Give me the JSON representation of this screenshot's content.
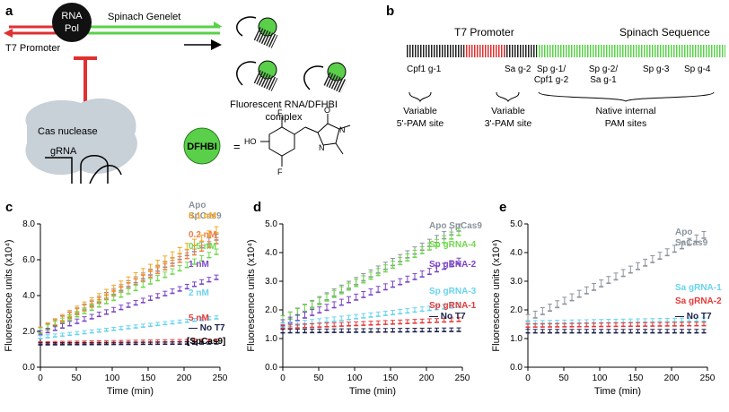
{
  "panel_labels": {
    "a": "a",
    "b": "b",
    "c": "c",
    "d": "d",
    "e": "e"
  },
  "schematic_a": {
    "rna_pol": [
      "RNA",
      "Pol"
    ],
    "genelet": "Spinach Genelet",
    "t7_promoter": "T7 Promoter",
    "cas_nuclease": "Cas nuclease",
    "grna": "gRNA",
    "complex": [
      "Fluorescent RNA/DFHBI",
      "complex"
    ],
    "dfhbi": "DFHBI",
    "equals": "=",
    "chem_atoms": {
      "F1": "F",
      "HO": "HO",
      "F2": "F",
      "O": "O",
      "N1": "N",
      "N2": "N"
    }
  },
  "schematic_b": {
    "t7_promoter": "T7 Promoter",
    "spinach_sequence": "Spinach Sequence",
    "sites": [
      "Cpf1 g-1",
      "Sa g-2",
      "Sp g-1/\nCpf1 g-2",
      "Sp g-2/\nSa g-1",
      "Sp g-3",
      "Sp g-4"
    ],
    "brace_labels": [
      [
        "Variable",
        "5'-PAM site"
      ],
      [
        "Variable",
        "3'-PAM site"
      ],
      [
        "Native internal",
        "PAM sites"
      ]
    ]
  },
  "colors": {
    "gray": "#8a939c",
    "orange": "#f5a623",
    "lightorange": "#f07f43",
    "green": "#6ed94a",
    "purple": "#7a45c7",
    "cyan": "#68d4ee",
    "red": "#e63a3a",
    "navy": "#1a1f4a",
    "promoter_red": "#e03030",
    "genelet_green": "#5ad04a",
    "blob": "#c8d0d8"
  },
  "chart_data": [
    {
      "id": "c",
      "type": "line",
      "xlabel": "Time (min)",
      "ylabel": "Fluorescence units (x10⁴)",
      "xlim": [
        0,
        250
      ],
      "ylim": [
        0,
        8
      ],
      "xticks": [
        "0",
        "50",
        "100",
        "150",
        "200",
        "250"
      ],
      "yticks": [
        "0.0",
        "2.0",
        "4.0",
        "6.0",
        "8.0"
      ],
      "x_start": 0,
      "x_end": 245,
      "legend_footer": "[SpCas9]",
      "series": [
        {
          "name": "Apo SpCas9",
          "y0": 1.9,
          "y1": 7.1,
          "color": "gray"
        },
        {
          "name": "0.1 nM",
          "y0": 1.9,
          "y1": 7.5,
          "color": "orange"
        },
        {
          "name": "0.2 nM",
          "y0": 1.9,
          "y1": 6.9,
          "color": "lightorange"
        },
        {
          "name": "0.5 nM",
          "y0": 1.9,
          "y1": 6.3,
          "color": "green"
        },
        {
          "name": "1 nM",
          "y0": 1.8,
          "y1": 4.9,
          "color": "purple"
        },
        {
          "name": "2 nM",
          "y0": 1.6,
          "y1": 2.7,
          "color": "cyan"
        },
        {
          "name": "5 nM",
          "y0": 1.3,
          "y1": 1.45,
          "color": "red"
        },
        {
          "name": "No T7",
          "y0": 1.25,
          "y1": 1.3,
          "color": "navy"
        }
      ]
    },
    {
      "id": "d",
      "type": "line",
      "xlabel": "Time (min)",
      "ylabel": "Fluorescence units (x10⁴)",
      "xlim": [
        0,
        250
      ],
      "ylim": [
        0,
        5
      ],
      "xticks": [
        "0",
        "50",
        "100",
        "150",
        "200",
        "250"
      ],
      "yticks": [
        "0.0",
        "1.0",
        "2.0",
        "3.0",
        "4.0",
        "5.0"
      ],
      "x_start": 0,
      "x_end": 245,
      "series": [
        {
          "name": "Apo SpCas9",
          "y0": 1.55,
          "y1": 4.75,
          "color": "gray"
        },
        {
          "name": "Sp gRNA-4",
          "y0": 1.55,
          "y1": 4.6,
          "color": "green"
        },
        {
          "name": "Sp gRNA-2",
          "y0": 1.45,
          "y1": 3.6,
          "color": "purple"
        },
        {
          "name": "Sp gRNA-3",
          "y0": 1.4,
          "y1": 2.1,
          "color": "cyan"
        },
        {
          "name": "Sp gRNA-1",
          "y0": 1.35,
          "y1": 1.6,
          "color": "red"
        },
        {
          "name": "No T7",
          "y0": 1.2,
          "y1": 1.25,
          "color": "navy"
        }
      ]
    },
    {
      "id": "e",
      "type": "line",
      "xlabel": "Time (min)",
      "ylabel": "Fluorescence units (x10⁴)",
      "xlim": [
        0,
        250
      ],
      "ylim": [
        0,
        5
      ],
      "xticks": [
        "0",
        "50",
        "100",
        "150",
        "200",
        "250"
      ],
      "yticks": [
        "0.0",
        "1.0",
        "2.0",
        "3.0",
        "4.0",
        "5.0"
      ],
      "x_start": 0,
      "x_end": 245,
      "series": [
        {
          "name": "Apo SaCas9",
          "y0": 1.6,
          "y1": 4.5,
          "color": "gray"
        },
        {
          "name": "Sa gRNA-1",
          "y0": 1.5,
          "y1": 1.6,
          "color": "cyan"
        },
        {
          "name": "Sa gRNA-2",
          "y0": 1.4,
          "y1": 1.45,
          "color": "red"
        },
        {
          "name": "No T7",
          "y0": 1.2,
          "y1": 1.2,
          "color": "navy"
        }
      ]
    }
  ]
}
